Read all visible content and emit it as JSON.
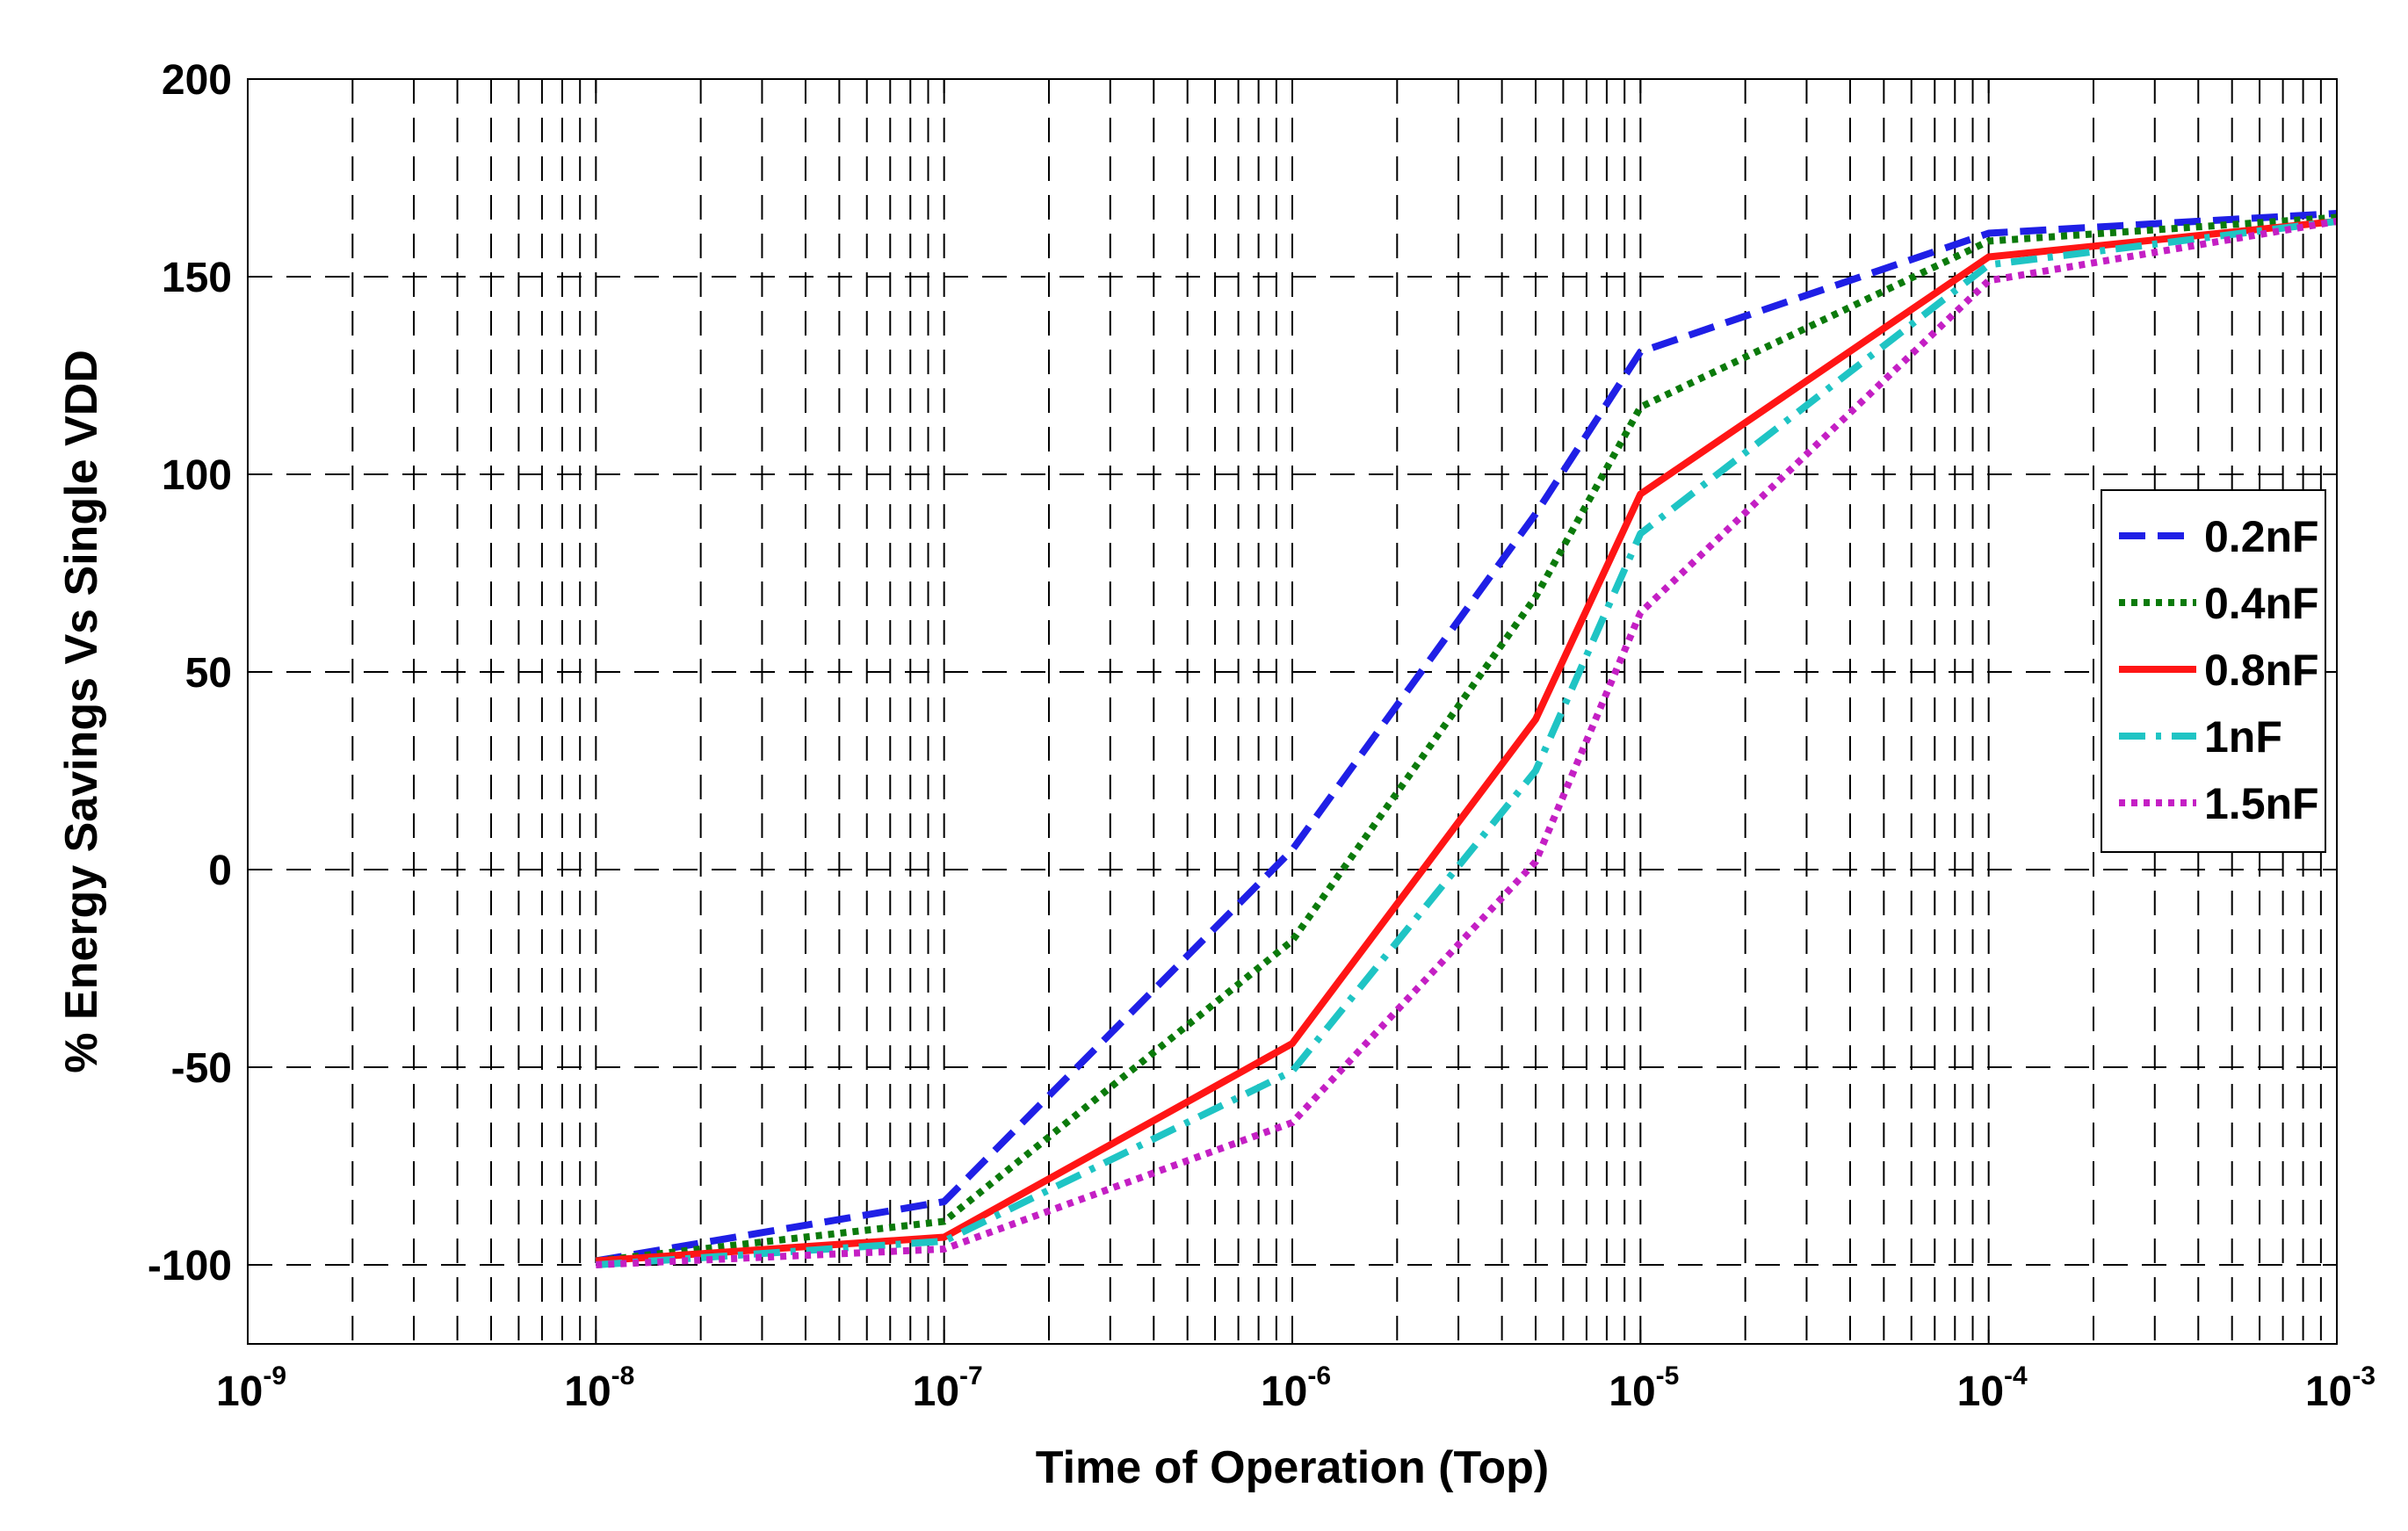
{
  "chart_data": {
    "type": "line",
    "title": "",
    "xlabel": "Time of Operation  (Top)",
    "ylabel": "% Energy Savings Vs Single VDD",
    "xscale": "log",
    "xlim": [
      1e-09,
      0.001
    ],
    "ylim": [
      -120,
      200
    ],
    "xticks": [
      {
        "base": "10",
        "exp": "-9"
      },
      {
        "base": "10",
        "exp": "-8"
      },
      {
        "base": "10",
        "exp": "-7"
      },
      {
        "base": "10",
        "exp": "-6"
      },
      {
        "base": "10",
        "exp": "-5"
      },
      {
        "base": "10",
        "exp": "-4"
      },
      {
        "base": "10",
        "exp": "-3"
      }
    ],
    "yticks": [
      "200",
      "150",
      "100",
      "50",
      "0",
      "-50",
      "-100"
    ],
    "ytick_values": [
      200,
      150,
      100,
      50,
      0,
      -50,
      -100
    ],
    "grid": true,
    "legend_position": "right",
    "x": [
      1e-08,
      1e-07,
      1e-06,
      5e-06,
      1e-05,
      0.0001,
      0.001
    ],
    "series": [
      {
        "name": "0.2nF",
        "color": "#1f1fe6",
        "dash": "dashed",
        "values": [
          -99,
          -84,
          5,
          90,
          131,
          161,
          166
        ]
      },
      {
        "name": "0.4nF",
        "color": "#0b7a0b",
        "dash": "dotted",
        "values": [
          -99,
          -89,
          -18,
          69,
          117,
          159,
          165
        ]
      },
      {
        "name": "0.8nF",
        "color": "#ff1515",
        "dash": "solid",
        "values": [
          -99,
          -93,
          -44,
          38,
          95,
          155,
          164
        ]
      },
      {
        "name": "1nF",
        "color": "#1fc4c4",
        "dash": "dashdot",
        "values": [
          -100,
          -94,
          -51,
          25,
          85,
          153,
          164
        ]
      },
      {
        "name": "1.5nF",
        "color": "#c41fc4",
        "dash": "dotted",
        "values": [
          -100,
          -96,
          -64,
          2,
          65,
          149,
          164
        ]
      }
    ]
  }
}
